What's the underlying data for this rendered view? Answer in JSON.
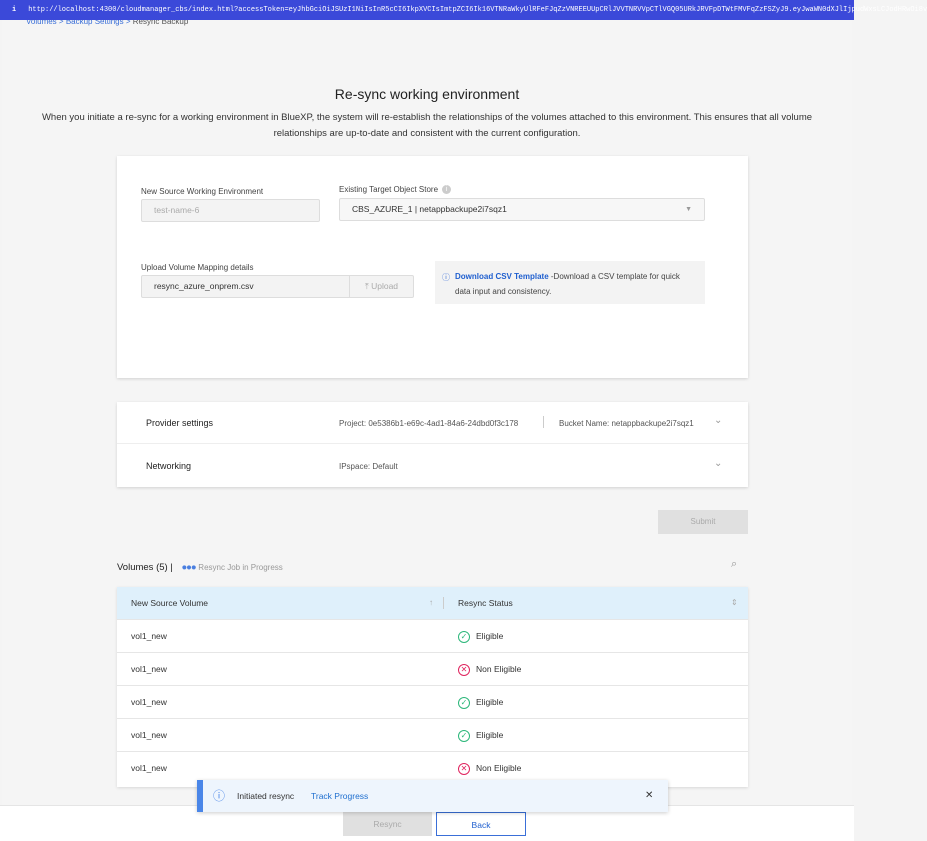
{
  "url_bar": {
    "icon": "info-icon",
    "url": "http://localhost:4300/cloudmanager_cbs/index.html?accessToken=eyJhbGciOiJSUzI1NiIsInR5cCI6IkpXVCIsImtpZCI6Ik16VTNRaWkyUlRFeFJqZzVNREEUUpCRlJVVTNRVVpCTlVGQ05URkJRVFpDTWtFMVFqZzFSZyJ9.eyJwaWN0dXJlIjpudWxsLCJodHRwOi8v"
  },
  "breadcrumb": [
    "Volumes",
    "Backup Settings",
    "Resync Backup"
  ],
  "title": "Re-sync working environment",
  "description": "When you initiate a re-sync for a working environment in BlueXP, the system will re-establish the relationships of the volumes attached to this environment. This ensures that all volume relationships are up-to-date and consistent with the current configuration.",
  "form": {
    "source_label": "New Source Working Environment",
    "source_placeholder": "test-name-6",
    "target_label": "Existing Target Object Store",
    "target_value": "CBS_AZURE_1 | netappbackupe2i7sqz1",
    "upload_label": "Upload Volume Mapping details",
    "upload_file": "resync_azure_onprem.csv",
    "upload_button": "Upload",
    "csv_link": "Download CSV Template",
    "csv_text": "-Download a CSV template for quick data input and consistency."
  },
  "provider": {
    "label": "Provider settings",
    "project": "Project: 0e5386b1-e69c-4ad1-84a6-24dbd0f3c178",
    "bucket": "Bucket Name: netappbackupe2i7sqz1"
  },
  "networking": {
    "label": "Networking",
    "ipspace": "IPspace: Default"
  },
  "submit": "Submit",
  "volumes": {
    "title": "Volumes (5) |",
    "job_status": "Resync Job in Progress",
    "columns": [
      "New Source Volume",
      "Resync Status"
    ],
    "rows": [
      {
        "name": "vol1_new",
        "status": "Eligible"
      },
      {
        "name": "vol1_new",
        "status": "Non Eligible"
      },
      {
        "name": "vol1_new",
        "status": "Eligible"
      },
      {
        "name": "vol1_new",
        "status": "Eligible"
      },
      {
        "name": "vol1_new",
        "status": "Non Eligible"
      }
    ]
  },
  "toast": {
    "text": "Initiated resync",
    "link": "Track Progress"
  },
  "footer": {
    "resync": "Resync",
    "back": "Back"
  },
  "colors": {
    "accent": "#3a6fd8",
    "eligible": "#2cb77a",
    "non_eligible": "#e0245e",
    "table_header": "#dff0fb"
  }
}
